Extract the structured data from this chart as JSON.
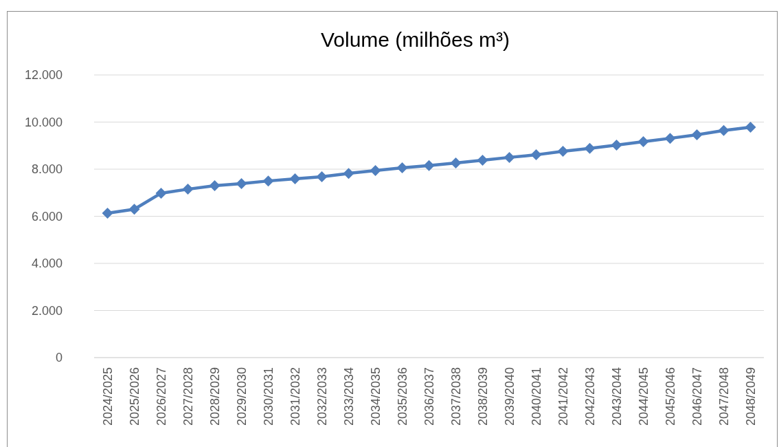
{
  "chart_data": {
    "type": "line",
    "title": "Volume (milhões m³)",
    "categories": [
      "2024/2025",
      "2025/2026",
      "2026/2027",
      "2027/2028",
      "2028/2029",
      "2029/2030",
      "2030/2031",
      "2031/2032",
      "2032/2033",
      "2033/2034",
      "2034/2035",
      "2035/2036",
      "2036/2037",
      "2037/2038",
      "2038/2039",
      "2039/2040",
      "2040/2041",
      "2041/2042",
      "2042/2043",
      "2043/2044",
      "2044/2045",
      "2045/2046",
      "2046/2047",
      "2047/2048",
      "2048/2049"
    ],
    "series": [
      {
        "color": "#4f7fbe",
        "values": [
          6130,
          6300,
          6980,
          7150,
          7300,
          7390,
          7500,
          7590,
          7680,
          7820,
          7940,
          8060,
          8150,
          8260,
          8380,
          8500,
          8610,
          8760,
          8880,
          9020,
          9170,
          9310,
          9460,
          9640,
          9780
        ]
      }
    ],
    "ylim": [
      0,
      12000
    ],
    "yticks": [
      0,
      {
        "value": 2000,
        "label": "2.000"
      },
      {
        "value": 4000,
        "label": "4.000"
      },
      {
        "value": 6000,
        "label": "6.000"
      },
      {
        "value": 8000,
        "label": "8.000"
      },
      {
        "value": 10000,
        "label": "10.000"
      },
      {
        "value": 12000,
        "label": "12.000"
      }
    ],
    "grid": "y",
    "marker": "diamond",
    "line_style": "solid"
  }
}
